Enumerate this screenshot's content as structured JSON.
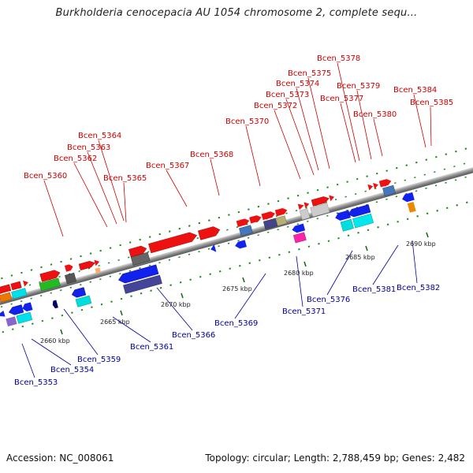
{
  "title": "Burkholderia cenocepacia AU 1054 chromosome 2, complete sequ...",
  "footer": {
    "accession": "Accession: NC_008061",
    "summary": "Topology: circular; Length: 2,788,459 bp; Genes: 2,482"
  },
  "colors": {
    "forward_label": "#cc0000",
    "reverse_label": "#000099",
    "backbone": "#8a8a8a",
    "tick": "#118811"
  },
  "ticks": [
    {
      "label": "2660 kbp"
    },
    {
      "label": "2665 kbp"
    },
    {
      "label": "2670 kbp"
    },
    {
      "label": "2675 kbp"
    },
    {
      "label": "2680 kbp"
    },
    {
      "label": "2685 kbp"
    },
    {
      "label": "2690 kbp"
    }
  ],
  "forward_genes": [
    {
      "label": "Bcen_5360"
    },
    {
      "label": "Bcen_5362"
    },
    {
      "label": "Bcen_5363"
    },
    {
      "label": "Bcen_5364"
    },
    {
      "label": "Bcen_5365"
    },
    {
      "label": "Bcen_5367"
    },
    {
      "label": "Bcen_5368"
    },
    {
      "label": "Bcen_5370"
    },
    {
      "label": "Bcen_5372"
    },
    {
      "label": "Bcen_5373"
    },
    {
      "label": "Bcen_5374"
    },
    {
      "label": "Bcen_5375"
    },
    {
      "label": "Bcen_5377"
    },
    {
      "label": "Bcen_5378"
    },
    {
      "label": "Bcen_5379"
    },
    {
      "label": "Bcen_5380"
    },
    {
      "label": "Bcen_5384"
    },
    {
      "label": "Bcen_5385"
    }
  ],
  "reverse_genes": [
    {
      "label": "Bcen_5353"
    },
    {
      "label": "Bcen_5354"
    },
    {
      "label": "Bcen_5359"
    },
    {
      "label": "Bcen_5361"
    },
    {
      "label": "Bcen_5366"
    },
    {
      "label": "Bcen_5369"
    },
    {
      "label": "Bcen_5371"
    },
    {
      "label": "Bcen_5376"
    },
    {
      "label": "Bcen_5381"
    },
    {
      "label": "Bcen_5382"
    }
  ]
}
